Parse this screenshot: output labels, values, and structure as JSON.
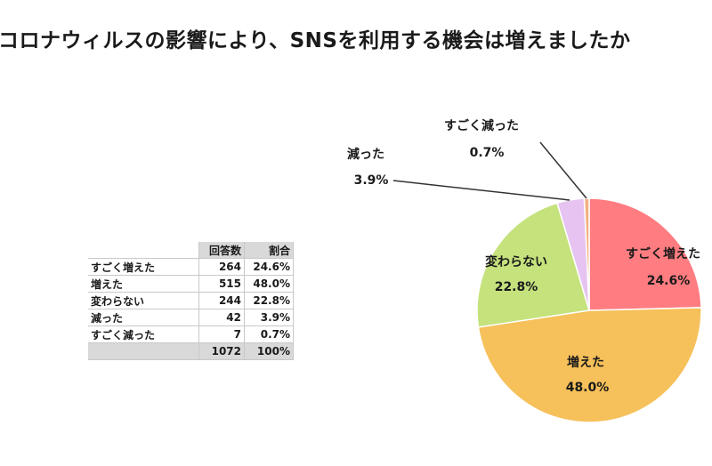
{
  "title": "コロナウィルスの影響により、SNSを利用する機会は増えましたか",
  "table": {
    "headers": [
      "",
      "回答数",
      "割合"
    ],
    "rows": [
      {
        "label": "すごく増えた",
        "count": "264",
        "share": "24.6%"
      },
      {
        "label": "増えた",
        "count": "515",
        "share": "48.0%"
      },
      {
        "label": "変わらない",
        "count": "244",
        "share": "22.8%"
      },
      {
        "label": "減った",
        "count": "42",
        "share": "3.9%"
      },
      {
        "label": "すごく減った",
        "count": "7",
        "share": "0.7%"
      }
    ],
    "total": {
      "label": "",
      "count": "1072",
      "share": "100%"
    }
  },
  "chart_data": {
    "type": "pie",
    "title": "コロナウィルスの影響により、SNSを利用する機会は増えましたか",
    "slices": [
      {
        "label": "すごく増えた",
        "value": 24.6,
        "display": "24.6%",
        "color": "#ff7c80"
      },
      {
        "label": "増えた",
        "value": 48.0,
        "display": "48.0%",
        "color": "#f6c05a"
      },
      {
        "label": "変わらない",
        "value": 22.8,
        "display": "22.8%",
        "color": "#c5e27d"
      },
      {
        "label": "減った",
        "value": 3.9,
        "display": "3.9%",
        "color": "#e6c3f0"
      },
      {
        "label": "すごく減った",
        "value": 0.7,
        "display": "0.7%",
        "color": "#f4b183"
      }
    ],
    "start": "12 o'clock",
    "direction": "clockwise"
  }
}
